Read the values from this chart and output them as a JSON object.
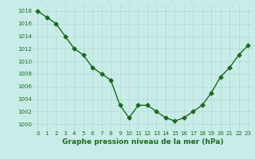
{
  "x": [
    0,
    1,
    2,
    3,
    4,
    5,
    6,
    7,
    8,
    9,
    10,
    11,
    12,
    13,
    14,
    15,
    16,
    17,
    18,
    19,
    20,
    21,
    22,
    23
  ],
  "y": [
    1018,
    1017,
    1016,
    1014,
    1012,
    1011,
    1009,
    1008,
    1007,
    1003,
    1001,
    1003,
    1003,
    1002,
    1001,
    1000.5,
    1001,
    1002,
    1003,
    1005,
    1007.5,
    1009,
    1011,
    1012.5
  ],
  "line_color": "#1a6b1a",
  "marker": "D",
  "marker_size": 2.5,
  "bg_color": "#c8ece8",
  "grid_color": "#b0d8d0",
  "xlabel": "Graphe pression niveau de la mer (hPa)",
  "xlabel_fontsize": 6.5,
  "xlabel_color": "#1a6b1a",
  "tick_color": "#1a6b1a",
  "ylim": [
    999,
    1019
  ],
  "yticks": [
    1000,
    1002,
    1004,
    1006,
    1008,
    1010,
    1012,
    1014,
    1016,
    1018
  ],
  "xticks": [
    0,
    1,
    2,
    3,
    4,
    5,
    6,
    7,
    8,
    9,
    10,
    11,
    12,
    13,
    14,
    15,
    16,
    17,
    18,
    19,
    20,
    21,
    22,
    23
  ],
  "tick_fontsize": 5.0,
  "linewidth": 1.0
}
